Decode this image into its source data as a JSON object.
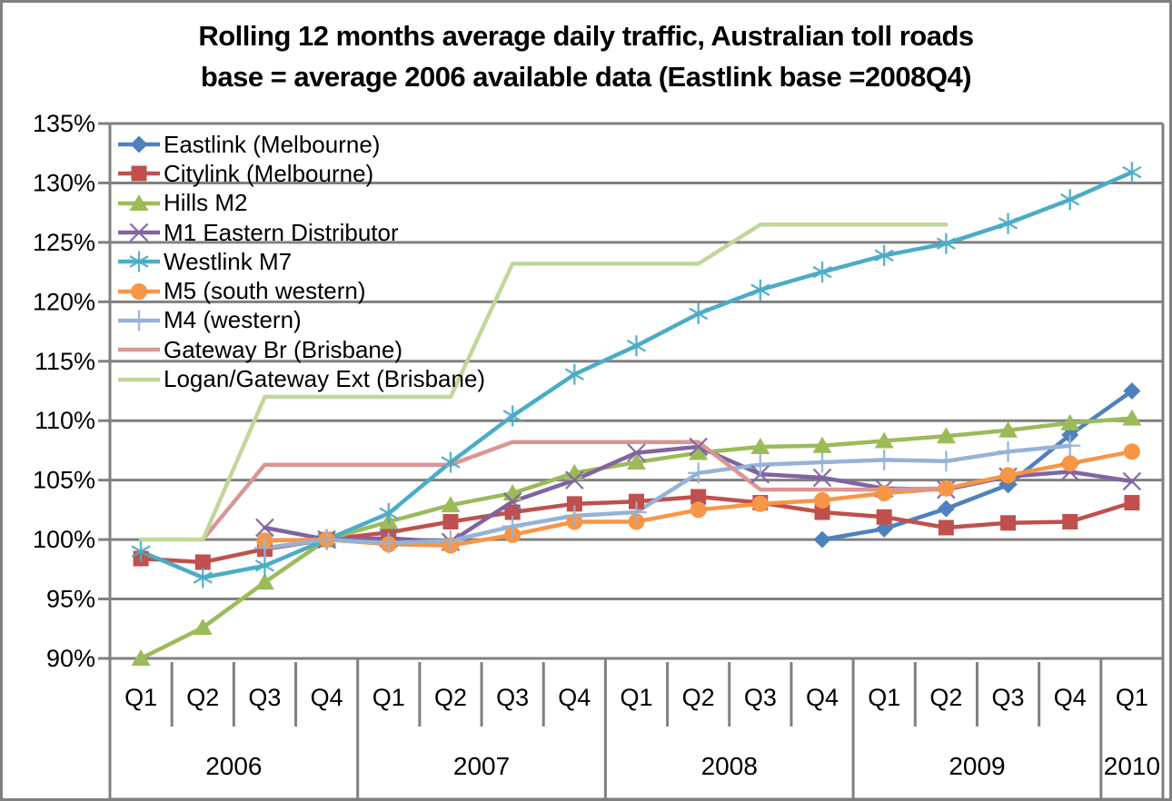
{
  "title": {
    "line1": "Rolling 12 months average daily traffic, Australian toll roads",
    "line2": "base = average 2006 available data (Eastlink base =2008Q4)"
  },
  "chart_data": {
    "type": "line",
    "grid": true,
    "legend_position": "top-left",
    "colors": {
      "gridline": "#808080",
      "axis": "#808080",
      "text": "#000000"
    },
    "y_axis": {
      "min": 90,
      "max": 135,
      "step": 5,
      "unit": "%",
      "tick_labels": [
        "135%",
        "130%",
        "125%",
        "120%",
        "115%",
        "110%",
        "105%",
        "100%",
        "95%",
        "90%"
      ]
    },
    "x_axis": {
      "quarters": [
        "Q1",
        "Q2",
        "Q3",
        "Q4",
        "Q1",
        "Q2",
        "Q3",
        "Q4",
        "Q1",
        "Q2",
        "Q3",
        "Q4",
        "Q1",
        "Q2",
        "Q3",
        "Q4",
        "Q1"
      ],
      "years": [
        {
          "label": "2006",
          "span": 4
        },
        {
          "label": "2007",
          "span": 4
        },
        {
          "label": "2008",
          "span": 4
        },
        {
          "label": "2009",
          "span": 4
        },
        {
          "label": "2010",
          "span": 1
        }
      ]
    },
    "series": [
      {
        "name": "Eastlink (Melbourne)",
        "color": "#4F81BD",
        "marker": "diamond",
        "values": [
          null,
          null,
          null,
          null,
          null,
          null,
          null,
          null,
          null,
          null,
          null,
          100.0,
          100.9,
          102.6,
          104.6,
          108.8,
          112.5
        ]
      },
      {
        "name": "Citylink (Melbourne)",
        "color": "#C0504D",
        "marker": "square",
        "values": [
          98.4,
          98.1,
          99.2,
          100.0,
          100.6,
          101.5,
          102.3,
          103.0,
          103.2,
          103.6,
          103.1,
          102.3,
          101.9,
          101.0,
          101.4,
          101.5,
          103.1
        ]
      },
      {
        "name": "Hills M2",
        "color": "#9BBB59",
        "marker": "triangle",
        "values": [
          90.0,
          92.6,
          96.4,
          100.0,
          101.5,
          102.9,
          103.9,
          105.6,
          106.5,
          107.3,
          107.8,
          107.9,
          108.3,
          108.7,
          109.2,
          109.8,
          110.2
        ]
      },
      {
        "name": "M1 Eastern Distributor",
        "color": "#8064A2",
        "marker": "x",
        "values": [
          null,
          null,
          101.0,
          100.0,
          100.1,
          99.8,
          103.2,
          105.0,
          107.3,
          107.8,
          105.5,
          105.2,
          104.3,
          104.2,
          105.3,
          105.7,
          104.9
        ]
      },
      {
        "name": "Westlink M7",
        "color": "#4BACC6",
        "marker": "asterisk",
        "values": [
          99.0,
          96.8,
          97.8,
          100.0,
          102.2,
          106.5,
          110.4,
          113.9,
          116.3,
          119.0,
          121.0,
          122.5,
          123.9,
          124.9,
          126.6,
          128.6,
          130.9
        ]
      },
      {
        "name": "M5 (south western)",
        "color": "#F79646",
        "marker": "circle",
        "values": [
          null,
          null,
          99.9,
          100.0,
          99.6,
          99.5,
          100.4,
          101.5,
          101.5,
          102.5,
          103.0,
          103.3,
          103.9,
          104.3,
          105.4,
          106.4,
          107.4
        ]
      },
      {
        "name": "M4 (western)",
        "color": "#95B3D7",
        "marker": "plus",
        "values": [
          null,
          null,
          99.3,
          100.0,
          99.7,
          99.9,
          101.1,
          102.0,
          102.3,
          105.6,
          106.3,
          106.5,
          106.7,
          106.6,
          107.4,
          107.9,
          null
        ]
      },
      {
        "name": "Gateway Br (Brisbane)",
        "color": "#D99694",
        "marker": "none",
        "values": [
          null,
          100.0,
          106.3,
          106.3,
          106.3,
          106.3,
          108.2,
          108.2,
          108.2,
          108.2,
          104.2,
          104.2,
          104.2,
          104.3,
          null,
          null,
          null
        ]
      },
      {
        "name": "Logan/Gateway Ext (Brisbane)",
        "color": "#C3D69B",
        "marker": "none",
        "values": [
          100.0,
          100.0,
          112.0,
          112.0,
          112.0,
          112.0,
          123.2,
          123.2,
          123.2,
          123.2,
          126.5,
          126.5,
          126.5,
          126.5,
          null,
          null,
          null
        ]
      }
    ]
  }
}
